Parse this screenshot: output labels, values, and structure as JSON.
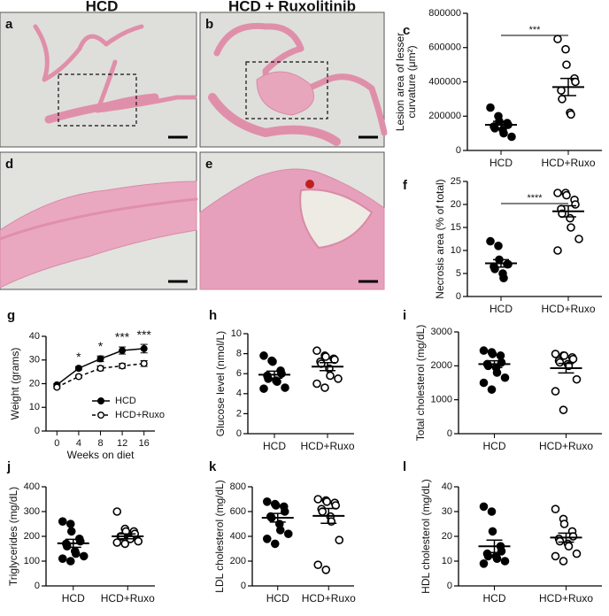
{
  "column_headers": [
    "HCD",
    "HCD + Ruxolitinib"
  ],
  "images": [
    {
      "panel_label": "a"
    },
    {
      "panel_label": "b"
    },
    {
      "panel_label": "d"
    },
    {
      "panel_label": "e"
    }
  ],
  "chart_data": [
    {
      "type": "dotplot",
      "panel_label": "c",
      "ylabel": [
        "Lesion area of lesser",
        "curvature (μm²)"
      ],
      "categories": [
        "HCD",
        "HCD+Ruxo"
      ],
      "markers": [
        "filled",
        "open"
      ],
      "points": [
        [
          250000,
          200000,
          170000,
          160000,
          150000,
          140000,
          130000,
          120000,
          100000,
          80000
        ],
        [
          650000,
          590000,
          500000,
          420000,
          400000,
          350000,
          300000,
          220000,
          210000
        ]
      ],
      "mean": [
        150000,
        370000
      ],
      "sem": [
        20000,
        50000
      ],
      "significance": "***",
      "ylim": [
        0,
        800000
      ],
      "yticks": [
        0,
        200000,
        400000,
        600000,
        800000
      ]
    },
    {
      "type": "dotplot",
      "panel_label": "f",
      "ylabel": [
        "Necrosis area (% of total)"
      ],
      "categories": [
        "HCD",
        "HCD+Ruxo"
      ],
      "markers": [
        "filled",
        "open"
      ],
      "points": [
        [
          12,
          11,
          8,
          7,
          7,
          6.5,
          6,
          5,
          4
        ],
        [
          22.5,
          22.5,
          22,
          21,
          20,
          19,
          18,
          17,
          15,
          12.5,
          10
        ]
      ],
      "mean": [
        7.2,
        18.5
      ],
      "sem": [
        0.8,
        1.2
      ],
      "significance": "****",
      "ylim": [
        0,
        25
      ],
      "yticks": [
        0,
        5,
        10,
        15,
        20,
        25
      ]
    },
    {
      "type": "line",
      "panel_label": "g",
      "ylabel": [
        "Weight (grams)"
      ],
      "xlabel": "Weeks on diet",
      "x": [
        0,
        4,
        8,
        12,
        16
      ],
      "series": [
        {
          "name": "HCD",
          "color": "#000000",
          "line_style": "solid",
          "marker": "filled",
          "values": [
            19.5,
            26.5,
            30.5,
            34,
            34.8
          ],
          "errors": [
            0.5,
            0.7,
            1.2,
            1.5,
            1.8
          ]
        },
        {
          "name": "HCD+Ruxo",
          "color": "#000000",
          "line_style": "dashed",
          "marker": "open",
          "values": [
            18.5,
            23,
            26.5,
            27.5,
            28.5
          ],
          "errors": [
            0.5,
            0.6,
            1,
            1,
            1.2
          ]
        }
      ],
      "annotations": [
        {
          "x": 4,
          "text": "*"
        },
        {
          "x": 8,
          "text": "*"
        },
        {
          "x": 12,
          "text": "***"
        },
        {
          "x": 16,
          "text": "***"
        }
      ],
      "xlim": [
        -2,
        18
      ],
      "xticks": [
        0,
        4,
        8,
        12,
        16
      ],
      "ylim": [
        0,
        40
      ],
      "yticks": [
        0,
        10,
        20,
        30,
        40
      ]
    },
    {
      "type": "dotplot",
      "panel_label": "h",
      "ylabel": [
        "Glucose level (nmol/L)"
      ],
      "categories": [
        "HCD",
        "HCD+Ruxo"
      ],
      "markers": [
        "filled",
        "open"
      ],
      "points": [
        [
          7.8,
          7.3,
          7.2,
          6.3,
          6,
          5.8,
          5.5,
          5.3,
          5.2,
          4.6,
          4.5
        ],
        [
          8.3,
          7.8,
          7.7,
          7.5,
          7.4,
          7.2,
          7,
          6.5,
          5.8,
          5.5,
          5,
          4.6
        ]
      ],
      "mean": [
        5.9,
        6.7
      ],
      "sem": [
        0.35,
        0.4
      ],
      "ylim": [
        0,
        10
      ],
      "yticks": [
        0,
        2,
        4,
        6,
        8,
        10
      ]
    },
    {
      "type": "dotplot",
      "panel_label": "i",
      "ylabel": [
        "Total cholesterol (mg/dL)"
      ],
      "categories": [
        "HCD",
        "HCD+Ruxo"
      ],
      "markers": [
        "filled",
        "open"
      ],
      "points": [
        [
          2450,
          2400,
          2350,
          2300,
          2100,
          2050,
          2000,
          1950,
          1800,
          1650,
          1500,
          1300
        ],
        [
          2350,
          2300,
          2300,
          2250,
          2200,
          2150,
          2100,
          2050,
          2000,
          1600,
          1250,
          700
        ]
      ],
      "mean": [
        2050,
        1930
      ],
      "sem": [
        100,
        140
      ],
      "ylim": [
        0,
        3000
      ],
      "yticks": [
        0,
        1000,
        2000,
        3000
      ]
    },
    {
      "type": "dotplot",
      "panel_label": "j",
      "ylabel": [
        "Triglycerides (mg/dL)"
      ],
      "categories": [
        "HCD",
        "HCD+Ruxo"
      ],
      "markers": [
        "filled",
        "open"
      ],
      "points": [
        [
          260,
          250,
          220,
          190,
          180,
          170,
          160,
          140,
          130,
          120,
          110,
          100
        ],
        [
          300,
          230,
          220,
          220,
          210,
          200,
          200,
          190,
          190,
          180,
          175,
          170
        ]
      ],
      "mean": [
        172,
        200
      ],
      "sem": [
        16,
        10
      ],
      "ylim": [
        0,
        400
      ],
      "yticks": [
        0,
        100,
        200,
        300,
        400
      ]
    },
    {
      "type": "dotplot",
      "panel_label": "k",
      "ylabel": [
        "LDL cholesterol (mg/dL)"
      ],
      "categories": [
        "HCD",
        "HCD+Ruxo"
      ],
      "markers": [
        "filled",
        "open"
      ],
      "points": [
        [
          680,
          660,
          650,
          640,
          600,
          560,
          550,
          500,
          450,
          420,
          380,
          340
        ],
        [
          700,
          690,
          680,
          670,
          650,
          620,
          600,
          560,
          520,
          370,
          170,
          130
        ]
      ],
      "mean": [
        550,
        565
      ],
      "sem": [
        35,
        60
      ],
      "ylim": [
        0,
        800
      ],
      "yticks": [
        0,
        200,
        400,
        600,
        800
      ]
    },
    {
      "type": "dotplot",
      "panel_label": "l",
      "ylabel": [
        "HDL cholesterol (mg/dL)"
      ],
      "categories": [
        "HCD",
        "HCD+Ruxo"
      ],
      "markers": [
        "filled",
        "open"
      ],
      "points": [
        [
          32,
          30,
          22,
          16,
          14,
          13,
          12,
          12,
          11,
          10,
          9
        ],
        [
          31,
          27,
          25,
          22,
          20,
          19,
          18,
          17,
          16,
          13,
          12,
          10
        ]
      ],
      "mean": [
        16,
        19.5
      ],
      "sem": [
        2.5,
        1.8
      ],
      "ylim": [
        0,
        40
      ],
      "yticks": [
        0,
        10,
        20,
        30,
        40
      ]
    }
  ]
}
